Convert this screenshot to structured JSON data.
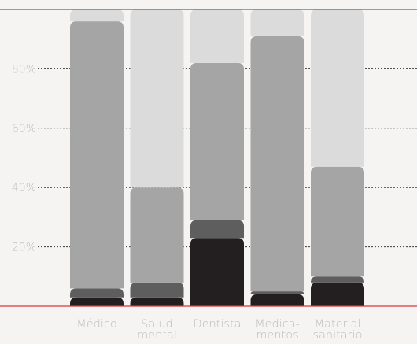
{
  "chart_data": {
    "type": "bar",
    "stacked": true,
    "orientation": "vertical",
    "categories": [
      [
        "Médico"
      ],
      [
        "Salud",
        "mental"
      ],
      [
        "Dentista"
      ],
      [
        "Medica-",
        "mentos"
      ],
      [
        "Material",
        "sanitario"
      ]
    ],
    "series": [
      {
        "values": [
          3,
          3,
          23,
          4,
          8
        ],
        "color": "#231f20"
      },
      {
        "values": [
          3,
          5,
          6,
          1,
          2
        ],
        "color": "#5e5e5e"
      },
      {
        "values": [
          90,
          32,
          53,
          86,
          37
        ],
        "color": "#a5a5a5"
      },
      {
        "values": [
          4,
          60,
          18,
          9,
          53
        ],
        "color": "#dbdbdb"
      }
    ],
    "ylim": [
      0,
      100
    ],
    "yticks": [
      {
        "value": 20,
        "label": "20%"
      },
      {
        "value": 40,
        "label": "40%"
      },
      {
        "value": 60,
        "label": "60%"
      },
      {
        "value": 80,
        "label": "80%"
      }
    ],
    "grid": "dotted",
    "reference_lines": [
      0,
      100
    ],
    "reference_line_color": "#d9363e",
    "tick_label_color": "#bdbdbd",
    "legend": "none",
    "title": "",
    "xlabel": "",
    "ylabel": ""
  }
}
